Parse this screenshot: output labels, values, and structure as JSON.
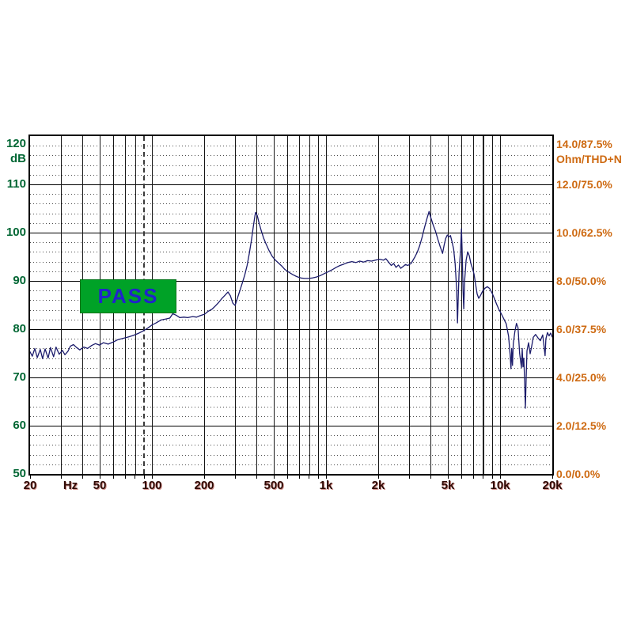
{
  "status_badge": {
    "label": "PASS",
    "bg_color": "#00A227",
    "text_color": "#2222CC"
  },
  "chart_data": {
    "type": "line",
    "title": "",
    "grid": true,
    "x_axis": {
      "scale": "log",
      "min_hz": 20,
      "max_hz": 20000,
      "unit_label": "Hz",
      "tick_labels": [
        {
          "text": "20",
          "freq": 20
        },
        {
          "text": "Hz",
          "freq": 34
        },
        {
          "text": "50",
          "freq": 50
        },
        {
          "text": "100",
          "freq": 100
        },
        {
          "text": "200",
          "freq": 200
        },
        {
          "text": "500",
          "freq": 500
        },
        {
          "text": "1k",
          "freq": 1000
        },
        {
          "text": "2k",
          "freq": 2000
        },
        {
          "text": "5k",
          "freq": 5000
        },
        {
          "text": "10k",
          "freq": 10000
        },
        {
          "text": "20k",
          "freq": 20000
        }
      ],
      "gridline_freqs": [
        30,
        40,
        50,
        60,
        70,
        80,
        100,
        200,
        300,
        400,
        500,
        600,
        700,
        800,
        900,
        1000,
        2000,
        3000,
        4000,
        5000,
        6000,
        7000,
        9000,
        10000
      ],
      "tick_freqs": [
        20,
        30,
        40,
        50,
        60,
        70,
        80,
        90,
        100,
        200,
        300,
        400,
        500,
        600,
        700,
        800,
        900,
        1000,
        2000,
        3000,
        4000,
        5000,
        6000,
        7000,
        8000,
        9000,
        10000,
        20000
      ]
    },
    "y_axis_left": {
      "unit_label": "dB",
      "min": 50,
      "max": 120,
      "major_step": 10,
      "minor_step": 2,
      "tick_labels": [
        {
          "text": "120",
          "value": 120
        },
        {
          "text": "110",
          "value": 110
        },
        {
          "text": "100",
          "value": 100
        },
        {
          "text": "90",
          "value": 90
        },
        {
          "text": "80",
          "value": 80
        },
        {
          "text": "70",
          "value": 70
        },
        {
          "text": "60",
          "value": 60
        },
        {
          "text": "50",
          "value": 50
        }
      ],
      "color": "#006633"
    },
    "y_axis_right": {
      "unit_label": "Ohm/THD+N",
      "min": 0,
      "max": 14,
      "tick_labels": [
        {
          "text": "14.0/87.5%",
          "value": 14
        },
        {
          "text": "12.0/75.0%",
          "value": 12
        },
        {
          "text": "10.0/62.5%",
          "value": 10
        },
        {
          "text": "8.0/50.0%",
          "value": 8
        },
        {
          "text": "6.0/37.5%",
          "value": 6
        },
        {
          "text": "4.0/25.0%",
          "value": 4
        },
        {
          "text": "2.0/12.5%",
          "value": 2
        },
        {
          "text": "0.0/0.0%",
          "value": 0
        }
      ],
      "color": "#CE6A12"
    },
    "limit_markers": [
      {
        "freq": 90,
        "style": "dashed"
      },
      {
        "freq": 8000,
        "style": "solid"
      }
    ],
    "series": [
      {
        "name": "frequency-response",
        "color": "#1b1b6b",
        "points_hz_db": [
          [
            20,
            75.3
          ],
          [
            20.6,
            74.4
          ],
          [
            21.3,
            76.0
          ],
          [
            22,
            74.1
          ],
          [
            22.9,
            75.8
          ],
          [
            23.6,
            73.9
          ],
          [
            24.4,
            75.9
          ],
          [
            25.4,
            74.0
          ],
          [
            26.2,
            76.2
          ],
          [
            27.3,
            74.3
          ],
          [
            28.2,
            76.3
          ],
          [
            29.4,
            74.8
          ],
          [
            30.7,
            75.6
          ],
          [
            31.7,
            74.7
          ],
          [
            33,
            75.4
          ],
          [
            34.1,
            76.5
          ],
          [
            35.5,
            76.8
          ],
          [
            37,
            76.2
          ],
          [
            38.6,
            75.7
          ],
          [
            40.7,
            76.3
          ],
          [
            42.8,
            76.0
          ],
          [
            45.1,
            76.6
          ],
          [
            47.5,
            77.0
          ],
          [
            50.1,
            76.7
          ],
          [
            52.8,
            77.2
          ],
          [
            56.2,
            76.9
          ],
          [
            59.8,
            77.3
          ],
          [
            63.7,
            77.8
          ],
          [
            68.5,
            78.1
          ],
          [
            73.7,
            78.4
          ],
          [
            78.4,
            78.7
          ],
          [
            83.5,
            79.1
          ],
          [
            88.9,
            79.6
          ],
          [
            94.6,
            80.2
          ],
          [
            99.7,
            80.8
          ],
          [
            106,
            81.3
          ],
          [
            113,
            81.9
          ],
          [
            120,
            82.1
          ],
          [
            127,
            82.3
          ],
          [
            132,
            83.2
          ],
          [
            138,
            82.9
          ],
          [
            145,
            82.4
          ],
          [
            153,
            82.5
          ],
          [
            161,
            82.4
          ],
          [
            172,
            82.6
          ],
          [
            181,
            82.5
          ],
          [
            190,
            82.8
          ],
          [
            201,
            83.1
          ],
          [
            211,
            83.7
          ],
          [
            223,
            84.2
          ],
          [
            232,
            84.8
          ],
          [
            242,
            85.5
          ],
          [
            252,
            86.3
          ],
          [
            263,
            87.0
          ],
          [
            274,
            87.7
          ],
          [
            283,
            86.9
          ],
          [
            292,
            85.4
          ],
          [
            301,
            84.9
          ],
          [
            311,
            86.5
          ],
          [
            321,
            88.0
          ],
          [
            331,
            89.5
          ],
          [
            342,
            91.2
          ],
          [
            353,
            93.2
          ],
          [
            364,
            95.8
          ],
          [
            375,
            98.8
          ],
          [
            383,
            101.2
          ],
          [
            391,
            103.4
          ],
          [
            395,
            104.2
          ],
          [
            404,
            103.5
          ],
          [
            412,
            102.2
          ],
          [
            425,
            100.5
          ],
          [
            439,
            98.9
          ],
          [
            453,
            97.7
          ],
          [
            472,
            96.3
          ],
          [
            492,
            95.1
          ],
          [
            513,
            94.3
          ],
          [
            535,
            93.7
          ],
          [
            558,
            93.1
          ],
          [
            581,
            92.4
          ],
          [
            613,
            91.8
          ],
          [
            646,
            91.3
          ],
          [
            680,
            90.9
          ],
          [
            717,
            90.6
          ],
          [
            755,
            90.5
          ],
          [
            795,
            90.5
          ],
          [
            838,
            90.6
          ],
          [
            883,
            90.8
          ],
          [
            930,
            91.1
          ],
          [
            980,
            91.5
          ],
          [
            1032,
            91.9
          ],
          [
            1087,
            92.3
          ],
          [
            1146,
            92.8
          ],
          [
            1207,
            93.2
          ],
          [
            1272,
            93.5
          ],
          [
            1340,
            93.8
          ],
          [
            1412,
            94.0
          ],
          [
            1487,
            93.8
          ],
          [
            1567,
            94.1
          ],
          [
            1651,
            93.9
          ],
          [
            1739,
            94.2
          ],
          [
            1832,
            94.1
          ],
          [
            1931,
            94.3
          ],
          [
            2034,
            94.5
          ],
          [
            2143,
            94.3
          ],
          [
            2211,
            94.6
          ],
          [
            2304,
            93.8
          ],
          [
            2377,
            93.2
          ],
          [
            2453,
            93.6
          ],
          [
            2531,
            92.8
          ],
          [
            2612,
            93.3
          ],
          [
            2695,
            92.6
          ],
          [
            2781,
            93.0
          ],
          [
            2870,
            93.4
          ],
          [
            2961,
            93.2
          ],
          [
            3088,
            93.6
          ],
          [
            3253,
            95.0
          ],
          [
            3356,
            96.0
          ],
          [
            3462,
            97.3
          ],
          [
            3572,
            99.0
          ],
          [
            3685,
            101.0
          ],
          [
            3802,
            102.8
          ],
          [
            3922,
            104.4
          ],
          [
            4004,
            103.2
          ],
          [
            4133,
            101.6
          ],
          [
            4266,
            100.3
          ],
          [
            4401,
            98.6
          ],
          [
            4540,
            97.1
          ],
          [
            4686,
            95.7
          ],
          [
            4784,
            97.4
          ],
          [
            4885,
            98.8
          ],
          [
            4988,
            99.5
          ],
          [
            5093,
            99.1
          ],
          [
            5199,
            99.4
          ],
          [
            5309,
            98.1
          ],
          [
            5420,
            96.6
          ],
          [
            5534,
            93.6
          ],
          [
            5650,
            88.0
          ],
          [
            5709,
            81.3
          ],
          [
            5768,
            87.0
          ],
          [
            5829,
            91.8
          ],
          [
            5950,
            96.8
          ],
          [
            6013,
            100.8
          ],
          [
            6076,
            95.5
          ],
          [
            6139,
            88.2
          ],
          [
            6203,
            84.2
          ],
          [
            6269,
            90.0
          ],
          [
            6400,
            94.3
          ],
          [
            6536,
            96.0
          ],
          [
            6672,
            95.2
          ],
          [
            6813,
            93.6
          ],
          [
            6954,
            92.6
          ],
          [
            7102,
            91.4
          ],
          [
            7250,
            89.4
          ],
          [
            7403,
            87.3
          ],
          [
            7557,
            86.4
          ],
          [
            7717,
            86.9
          ],
          [
            7962,
            87.9
          ],
          [
            8212,
            88.5
          ],
          [
            8472,
            88.8
          ],
          [
            8740,
            88.4
          ],
          [
            9017,
            87.5
          ],
          [
            9302,
            86.3
          ],
          [
            9597,
            85.1
          ],
          [
            9901,
            84.0
          ],
          [
            10213,
            83.1
          ],
          [
            10540,
            82.1
          ],
          [
            10875,
            81.1
          ],
          [
            11219,
            78.5
          ],
          [
            11456,
            74.5
          ],
          [
            11576,
            71.8
          ],
          [
            11696,
            76.0
          ],
          [
            11818,
            72.5
          ],
          [
            11943,
            77.0
          ],
          [
            12194,
            79.5
          ],
          [
            12452,
            81.2
          ],
          [
            12712,
            80.3
          ],
          [
            12978,
            75.0
          ],
          [
            13298,
            72.0
          ],
          [
            13440,
            76.0
          ],
          [
            13580,
            72.2
          ],
          [
            13722,
            74.0
          ],
          [
            13866,
            69.5
          ],
          [
            14012,
            63.6
          ],
          [
            14159,
            70.0
          ],
          [
            14307,
            75.5
          ],
          [
            14608,
            77.2
          ],
          [
            14916,
            74.9
          ],
          [
            15228,
            76.5
          ],
          [
            15549,
            78.3
          ],
          [
            16045,
            78.9
          ],
          [
            16557,
            78.2
          ],
          [
            17082,
            77.6
          ],
          [
            17625,
            78.8
          ],
          [
            18188,
            74.5
          ],
          [
            18381,
            78.0
          ],
          [
            18766,
            79.3
          ],
          [
            19166,
            78.6
          ],
          [
            19566,
            79.2
          ],
          [
            19978,
            78.4
          ]
        ]
      }
    ]
  }
}
